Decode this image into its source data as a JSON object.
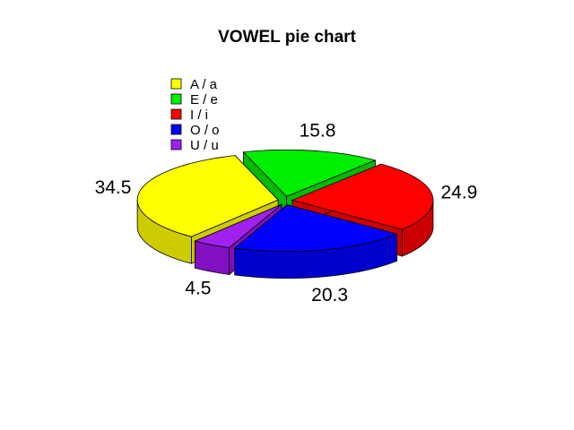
{
  "chart_data": {
    "type": "pie",
    "title": "VOWEL pie chart",
    "categories": [
      "A / a",
      "E / e",
      "I / i",
      "O / o",
      "U / u"
    ],
    "values": [
      34.5,
      15.8,
      24.9,
      20.3,
      4.5
    ],
    "value_labels": [
      "34.5",
      "15.8",
      "24.9",
      "20.3",
      "4.5"
    ],
    "colors": [
      "#ffff00",
      "#00ee00",
      "#ff0000",
      "#0000ff",
      "#a020f0"
    ],
    "side_colors": [
      "#cccc00",
      "#00bb00",
      "#cc0000",
      "#0000cc",
      "#8010c0"
    ],
    "legend_position": "top-left",
    "style": "3d-exploded"
  }
}
